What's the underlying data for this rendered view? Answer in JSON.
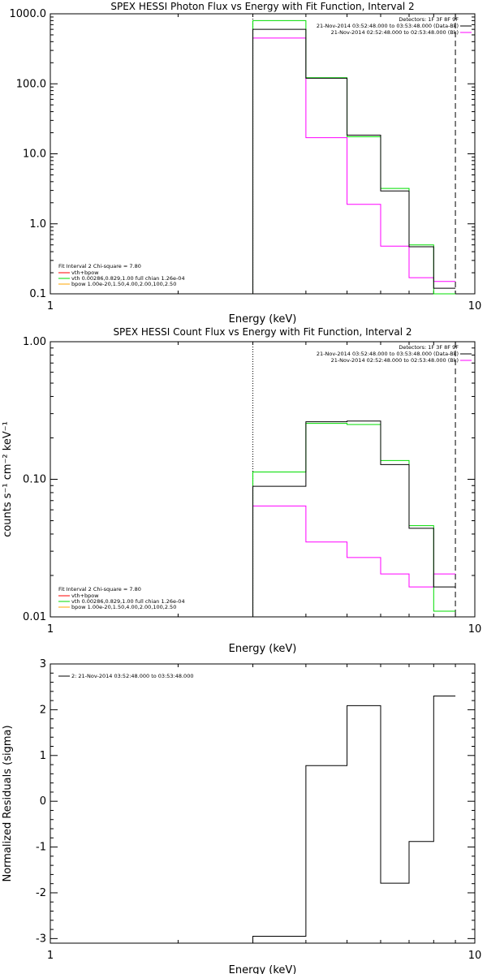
{
  "colors": {
    "data": "#000000",
    "background": "#ff00ff",
    "fit_total": "#ff0000",
    "vth": "#00dd00",
    "bpow": "#ffa500"
  },
  "chart_data": [
    {
      "type": "line",
      "step": true,
      "title": "SPEX HESSI Photon Flux vs Energy with Fit Function, Interval 2",
      "xlabel": "Energy (keV)",
      "ylabel": "",
      "xscale": "log",
      "yscale": "log",
      "xlim": [
        1,
        10
      ],
      "ylim": [
        0.1,
        1000
      ],
      "xticks": [
        {
          "v": 1,
          "label": "1"
        },
        {
          "v": 10,
          "label": "10"
        }
      ],
      "yticks": [
        {
          "v": 0.1,
          "label": "0.1"
        },
        {
          "v": 1,
          "label": "1.0"
        },
        {
          "v": 10,
          "label": "10.0"
        },
        {
          "v": 100,
          "label": "100.0"
        },
        {
          "v": 1000,
          "label": "1000.0"
        }
      ],
      "vlines": [
        {
          "x": 3.0,
          "style": "dotted"
        },
        {
          "x": 9.0,
          "style": "dashed"
        }
      ],
      "edges": [
        3.0,
        4.0,
        5.0,
        6.0,
        7.0,
        8.0,
        9.0
      ],
      "series": [
        {
          "color": "#ff00ff",
          "values": [
            450,
            17,
            1.9,
            0.48,
            0.17,
            0.15
          ]
        },
        {
          "color": "#00dd00",
          "values": [
            800,
            122,
            17.5,
            3.2,
            0.5,
            0.1
          ]
        },
        {
          "color": "#000000",
          "values": [
            600,
            120,
            18.5,
            2.95,
            0.47,
            0.12
          ]
        }
      ],
      "legend_top": {
        "header": "Detectors: 1F 3F 8F 9F",
        "entries": [
          {
            "text": "21-Nov-2014 03:52:48.000 to 03:53:48.000 (Data-Bk)",
            "color": "#000000"
          },
          {
            "text": "21-Nov-2014 02:52:48.000 to 02:53:48.000 (Bk)",
            "color": "#ff00ff"
          }
        ]
      },
      "legend_fit": {
        "header": "Fit Interval 2   Chi-square = 7.80",
        "entries": [
          {
            "text": "vth+bpow",
            "color": "#ff0000"
          },
          {
            "text": "vth 0.00286,0.829,1.00  full chian 1.26e-04",
            "color": "#00dd00"
          },
          {
            "text": "bpow 1.00e-20,1.50,4.00,2.00,100,2.50",
            "color": "#ffa500"
          }
        ]
      }
    },
    {
      "type": "line",
      "step": true,
      "title": "SPEX HESSI Count Flux vs Energy with Fit Function, Interval 2",
      "xlabel": "Energy (keV)",
      "ylabel": "counts s⁻¹ cm⁻² keV⁻¹",
      "xscale": "log",
      "yscale": "log",
      "xlim": [
        1,
        10
      ],
      "ylim": [
        0.01,
        1.0
      ],
      "xticks": [
        {
          "v": 1,
          "label": "1"
        },
        {
          "v": 10,
          "label": "10"
        }
      ],
      "yticks": [
        {
          "v": 0.01,
          "label": "0.01"
        },
        {
          "v": 0.1,
          "label": "0.10"
        },
        {
          "v": 1,
          "label": "1.00"
        }
      ],
      "vlines": [
        {
          "x": 3.0,
          "style": "dotted"
        },
        {
          "x": 9.0,
          "style": "dashed"
        }
      ],
      "edges": [
        3.0,
        4.0,
        5.0,
        6.0,
        7.0,
        8.0,
        9.0
      ],
      "series": [
        {
          "color": "#ff00ff",
          "values": [
            0.064,
            0.035,
            0.027,
            0.0205,
            0.0165,
            0.0205
          ]
        },
        {
          "color": "#00dd00",
          "values": [
            0.113,
            0.255,
            0.25,
            0.137,
            0.046,
            0.011
          ]
        },
        {
          "color": "#000000",
          "values": [
            0.089,
            0.262,
            0.265,
            0.128,
            0.044,
            0.0165
          ]
        }
      ],
      "legend_top": {
        "header": "Detectors: 1F 3F 8F 9F",
        "entries": [
          {
            "text": "21-Nov-2014 03:52:48.000 to 03:53:48.000 (Data-Bk)",
            "color": "#000000"
          },
          {
            "text": "21-Nov-2014 02:52:48.000 to 02:53:48.000 (Bk)",
            "color": "#ff00ff"
          }
        ]
      },
      "legend_fit": {
        "header": "Fit Interval 2   Chi-square = 7.80",
        "entries": [
          {
            "text": "vth+bpow",
            "color": "#ff0000"
          },
          {
            "text": "vth 0.00286,0.829,1.00  full chian 1.26e-04",
            "color": "#00dd00"
          },
          {
            "text": "bpow 1.00e-20,1.50,4.00,2.00,100,2.50",
            "color": "#ffa500"
          }
        ]
      }
    },
    {
      "type": "line",
      "step": true,
      "title": "",
      "xlabel": "Energy (keV)",
      "ylabel": "Normalized Residuals (sigma)",
      "xscale": "log",
      "yscale": "linear",
      "xlim": [
        1,
        10
      ],
      "ylim": [
        -3.1,
        3.0
      ],
      "xticks": [
        {
          "v": 1,
          "label": "1"
        },
        {
          "v": 10,
          "label": "10"
        }
      ],
      "yticks": [
        {
          "v": -3,
          "label": "-3"
        },
        {
          "v": -2,
          "label": "-2"
        },
        {
          "v": -1,
          "label": "-1"
        },
        {
          "v": 0,
          "label": "0"
        },
        {
          "v": 1,
          "label": "1"
        },
        {
          "v": 2,
          "label": "2"
        },
        {
          "v": 3,
          "label": "3"
        }
      ],
      "vlines": [],
      "edges": [
        3.0,
        4.0,
        5.0,
        6.0,
        7.0,
        8.0,
        9.0
      ],
      "series": [
        {
          "color": "#000000",
          "values": [
            -2.95,
            0.78,
            2.09,
            -1.79,
            -0.88,
            2.3
          ]
        }
      ],
      "legend_top": {
        "header": "",
        "entries": []
      },
      "legend_fit": {
        "header": "",
        "entries": []
      },
      "legend_left": {
        "entries": [
          {
            "text": "2: 21-Nov-2014 03:52:48.000 to 03:53:48.000",
            "color": "#000000"
          }
        ]
      }
    }
  ]
}
